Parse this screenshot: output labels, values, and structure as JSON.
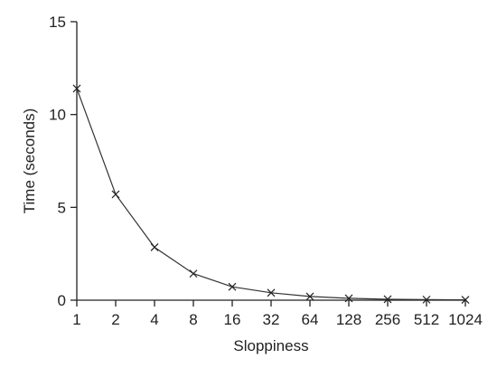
{
  "colors": {
    "axis": "#222222",
    "line": "#333333",
    "marker": "#222222",
    "background": "#ffffff"
  },
  "chart_data": {
    "type": "line",
    "title": "",
    "xlabel": "Sloppiness",
    "ylabel": "Time (seconds)",
    "x_scale": "log2",
    "categories": [
      "1",
      "2",
      "4",
      "8",
      "16",
      "32",
      "64",
      "128",
      "256",
      "512",
      "1024"
    ],
    "x": [
      1,
      2,
      4,
      8,
      16,
      32,
      64,
      128,
      256,
      512,
      1024
    ],
    "y_ticks": [
      0,
      5,
      10,
      15
    ],
    "ylim": [
      0,
      15
    ],
    "grid": false,
    "legend": "none",
    "marker": "x",
    "series": [
      {
        "values": [
          11.4,
          5.7,
          2.85,
          1.43,
          0.72,
          0.4,
          0.2,
          0.1,
          0.05,
          0.03,
          0.02
        ]
      }
    ]
  }
}
